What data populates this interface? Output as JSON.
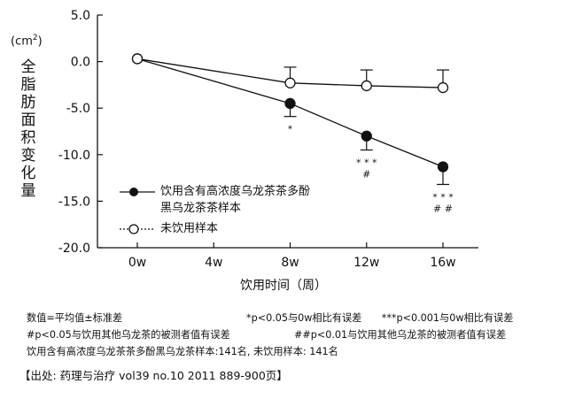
{
  "chart_data": {
    "type": "line",
    "categories": [
      "0w",
      "4w",
      "8w",
      "12w",
      "16w"
    ],
    "x": [
      0,
      4,
      8,
      12,
      16
    ],
    "ylabel": "全脂肪面积变化量",
    "ylabel_unit": "(cm",
    "ylabel_unit_sup": "2",
    "ylabel_unit_close": ")",
    "xlabel": "饮用时间（周）",
    "ylim": [
      -20.0,
      5.0
    ],
    "yticks": [
      "5.0",
      "0.0",
      "-5.0",
      "-10.0",
      "-15.0",
      "-20.0"
    ],
    "ytick_values": [
      5,
      0,
      -5,
      -10,
      -15,
      -20
    ],
    "series": [
      {
        "name": "饮用含有高浓度乌龙茶茶多酚黑乌龙茶茶样本",
        "marker": "filled",
        "x": [
          0,
          8,
          12,
          16
        ],
        "values": [
          0.3,
          -4.5,
          -8.0,
          -11.3
        ],
        "error_down": [
          0,
          1.4,
          1.5,
          1.9
        ],
        "error_up": [
          0,
          0,
          0,
          0
        ],
        "annotations": [
          {
            "x": 8,
            "lines": [
              "*"
            ]
          },
          {
            "x": 12,
            "lines": [
              "* * *",
              "#"
            ]
          },
          {
            "x": 16,
            "lines": [
              "* * *",
              "# #"
            ]
          }
        ]
      },
      {
        "name": "未饮用样本",
        "marker": "open",
        "x": [
          0,
          8,
          12,
          16
        ],
        "values": [
          0.3,
          -2.3,
          -2.6,
          -2.8
        ],
        "error_down": [
          0,
          0,
          0,
          0
        ],
        "error_up": [
          0,
          1.7,
          1.7,
          1.9
        ]
      }
    ],
    "legend": [
      "饮用含有高浓度乌龙茶茶多酚",
      "黑乌龙茶茶样本",
      "未饮用样本"
    ]
  },
  "notes": {
    "line1_left": "数值=平均值±标准差",
    "line1_right": "*p<0.05与0w相比有误差　　***p<0.001与0w相比有误差",
    "line2_left": "#p<0.05与饮用其他乌龙茶的被测者值有误差",
    "line2_right": "##p<0.01与饮用其他乌龙茶的被测者值有误差",
    "line3": "饮用含有高浓度乌龙茶茶多酚黑乌龙茶样本:141名, 未饮用样本: 141名"
  },
  "source": "【出处: 药理与治疗 vol39 no.10 2011 889-900页】"
}
